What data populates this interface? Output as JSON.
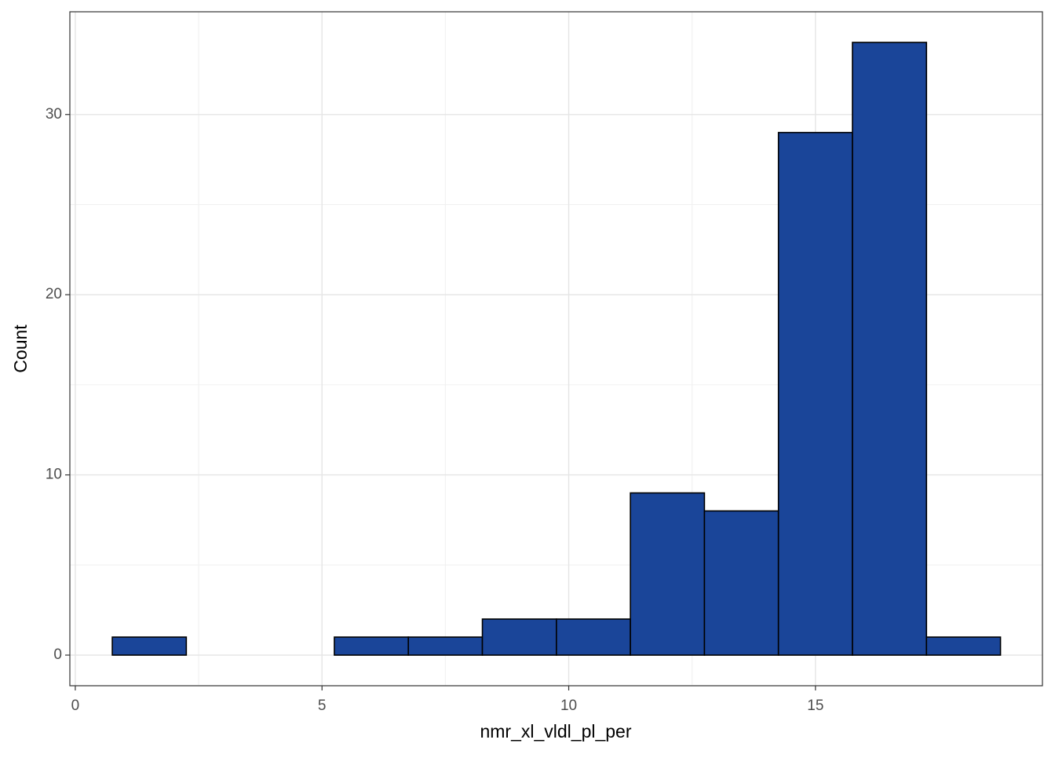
{
  "chart_data": {
    "type": "histogram",
    "x_label": "nmr_xl_vldl_pl_per",
    "y_label": "Count",
    "bins": [
      0.75,
      2.25,
      3.75,
      5.25,
      6.75,
      8.25,
      9.75,
      11.25,
      12.75,
      14.25,
      15.75,
      17.25,
      18.75
    ],
    "values": [
      1,
      0,
      0,
      1,
      1,
      2,
      2,
      9,
      8,
      29,
      34,
      1
    ],
    "color": "#1a4599",
    "xlim": [
      -0.11,
      19.6
    ],
    "ylim": [
      -1.7,
      35.7
    ],
    "xticks": [
      0,
      5,
      10,
      15
    ],
    "yticks": [
      0,
      10,
      20,
      30
    ],
    "grid": true
  }
}
